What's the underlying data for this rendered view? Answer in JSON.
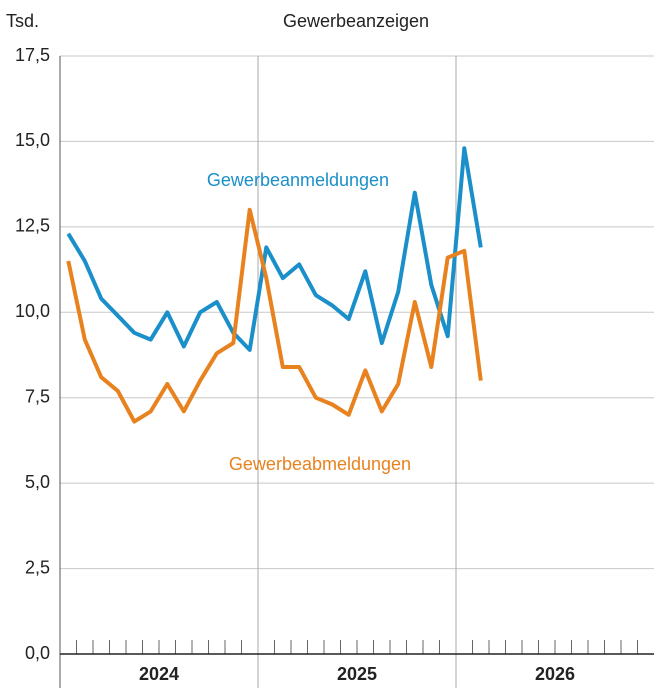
{
  "chart_data": {
    "type": "line",
    "title": "Gewerbeanzeigen",
    "y_unit": "Tsd.",
    "x": [
      2024.042,
      2024.125,
      2024.208,
      2024.292,
      2024.375,
      2024.458,
      2024.542,
      2024.625,
      2024.708,
      2024.792,
      2024.875,
      2024.958,
      2025.042,
      2025.125,
      2025.208,
      2025.292,
      2025.375,
      2025.458,
      2025.542,
      2025.625,
      2025.708,
      2025.792,
      2025.875,
      2025.958,
      2026.042,
      2026.125
    ],
    "series": [
      {
        "name": "Gewerbeanmeldungen",
        "color": "#1a8fc9",
        "values": [
          12.3,
          11.5,
          10.4,
          9.9,
          9.4,
          9.2,
          10.0,
          9.0,
          10.0,
          10.3,
          9.4,
          8.9,
          11.9,
          11.0,
          11.4,
          10.5,
          10.2,
          9.8,
          11.2,
          9.1,
          10.6,
          13.5,
          10.8,
          9.3,
          14.8,
          11.9
        ]
      },
      {
        "name": "Gewerbeabmeldungen",
        "color": "#e8821e",
        "values": [
          11.5,
          9.2,
          8.1,
          7.7,
          6.8,
          7.1,
          7.9,
          7.1,
          8.0,
          8.8,
          9.1,
          13.0,
          11.0,
          8.4,
          8.4,
          7.5,
          7.3,
          7.0,
          8.3,
          7.1,
          7.9,
          10.3,
          8.4,
          11.6,
          11.8,
          8.0
        ]
      }
    ],
    "xlim": [
      2024,
      2027
    ],
    "xticks": [
      2024,
      2025,
      2026
    ],
    "ylim": [
      0,
      17.5
    ],
    "yticks": [
      {
        "value": 0,
        "label": "0,0"
      },
      {
        "value": 2.5,
        "label": "2,5"
      },
      {
        "value": 5,
        "label": "5,0"
      },
      {
        "value": 7.5,
        "label": "7,5"
      },
      {
        "value": 10,
        "label": "10,0"
      },
      {
        "value": 12.5,
        "label": "12,5"
      },
      {
        "value": 15,
        "label": "15,0"
      },
      {
        "value": 17.5,
        "label": "17,5"
      }
    ],
    "grid": true
  }
}
